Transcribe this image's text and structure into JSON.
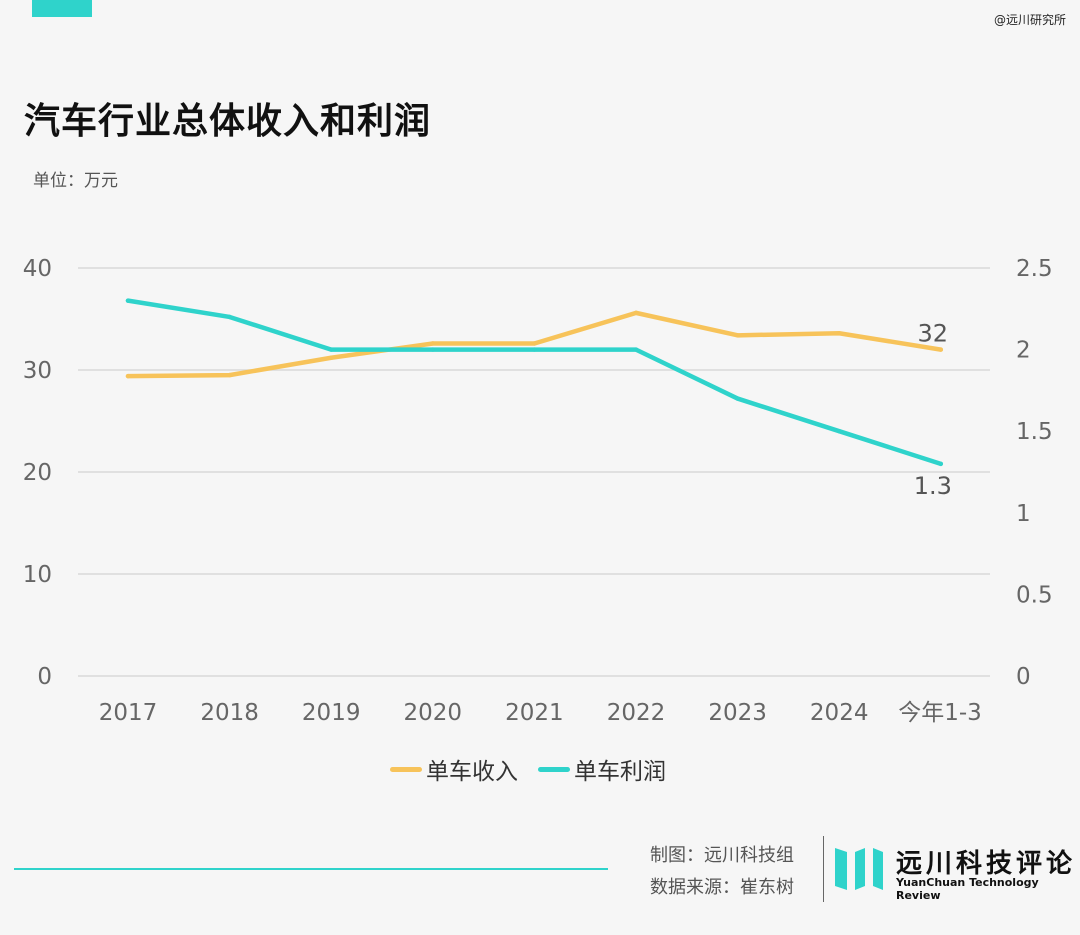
{
  "header": {
    "watermark": "@远川研究所",
    "accent_color": "#2fd3cb"
  },
  "chart_data": {
    "type": "line",
    "title": "汽车行业总体收入和利润",
    "unit_label": "单位：万元",
    "categories": [
      "2017",
      "2018",
      "2019",
      "2020",
      "2021",
      "2022",
      "2023",
      "2024",
      "今年1-3"
    ],
    "y_left": {
      "lim": [
        0,
        40
      ],
      "ticks": [
        "0",
        "10",
        "20",
        "30",
        "40"
      ]
    },
    "y_right": {
      "lim": [
        0,
        2.5
      ],
      "ticks": [
        "0",
        "0.5",
        "1",
        "1.5",
        "2",
        "2.5"
      ]
    },
    "series": [
      {
        "name": "单车收入",
        "axis": "left",
        "color": "#f7c35a",
        "values": [
          29.4,
          29.5,
          31.2,
          32.6,
          32.6,
          35.6,
          33.4,
          33.6,
          32
        ],
        "end_label": "32"
      },
      {
        "name": "单车利润",
        "axis": "right",
        "color": "#2fd3cb",
        "values": [
          2.3,
          2.2,
          2.0,
          2.0,
          2.0,
          2.0,
          1.7,
          1.5,
          1.3
        ],
        "end_label": "1.3"
      }
    ],
    "grid": true,
    "legend_position": "bottom"
  },
  "footer": {
    "credit_line1": "制图：远川科技组",
    "credit_line2": "数据来源：崔东树",
    "brand_cn": "远川科技评论",
    "brand_en": "YuanChuan Technology Review",
    "line_color": "#2fd3cb"
  }
}
